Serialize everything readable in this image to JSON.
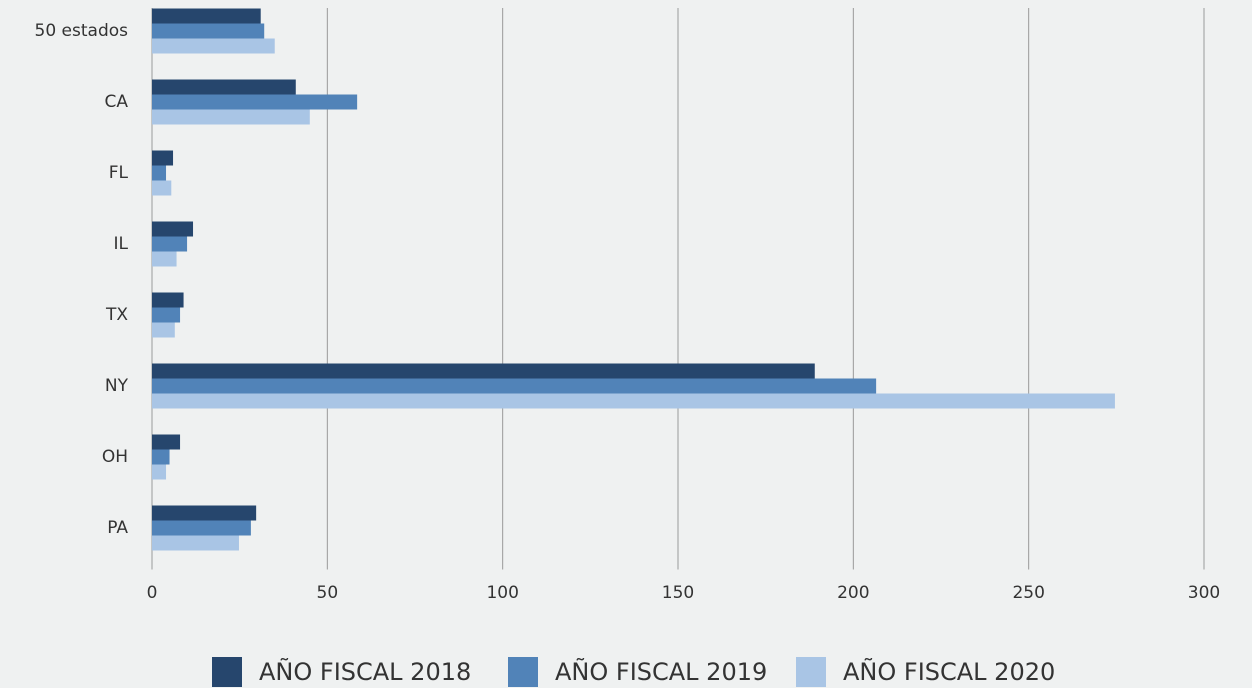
{
  "chart_data": {
    "type": "hbar",
    "categories": [
      "50 estados",
      "CA",
      "FL",
      "IL",
      "TX",
      "NY",
      "OH",
      "PA"
    ],
    "series": [
      {
        "name": "AÑO FISCAL 2018",
        "color": "#26466d",
        "values": [
          31,
          41,
          6,
          11.7,
          9,
          189,
          8,
          29.7
        ]
      },
      {
        "name": "AÑO FISCAL 2019",
        "color": "#5183b8",
        "values": [
          32,
          58.5,
          4,
          10,
          8,
          206.5,
          5,
          28.2
        ]
      },
      {
        "name": "AÑO FISCAL 2020",
        "color": "#a9c5e5",
        "values": [
          35,
          45,
          5.5,
          7,
          6.5,
          274.6,
          4,
          24.8
        ]
      }
    ],
    "xlim": [
      0,
      300
    ],
    "xticks": [
      0,
      50,
      100,
      150,
      200,
      250,
      300
    ],
    "grid": true
  }
}
